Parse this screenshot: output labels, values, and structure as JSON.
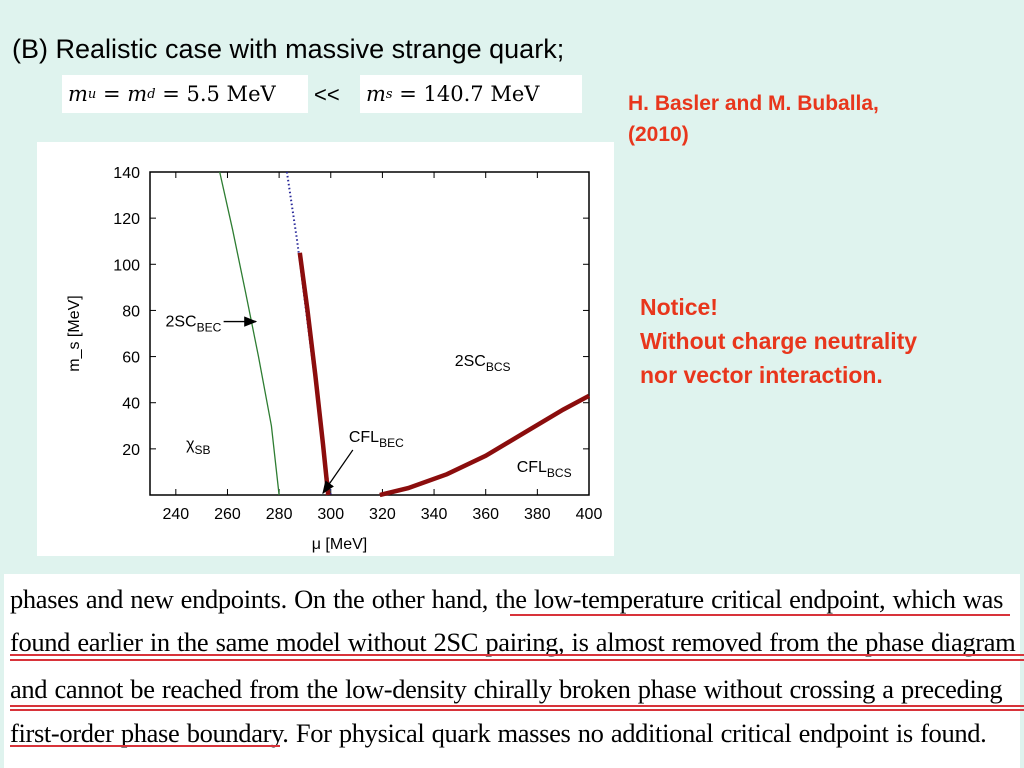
{
  "slide": {
    "title": "(B) Realistic case with massive strange quark;",
    "formula_left": {
      "m1": "m",
      "s1": "u",
      "eq1": "=",
      "m2": "m",
      "s2": "d",
      "val": "= 5.5 MeV"
    },
    "compare": "<<",
    "formula_right": {
      "m": "m",
      "s": "s",
      "val": "= 140.7 MeV"
    },
    "citation": [
      "H. Basler and M. Buballa,",
      "(2010)"
    ],
    "notice": [
      "Notice!",
      "Without charge neutrality",
      "nor vector interaction."
    ]
  },
  "colors": {
    "citation": "#e8361c",
    "chiral_line": "#2e7d32",
    "dotted_line": "#2a2a9a",
    "first_order": "#8b0d0d"
  },
  "chart_data": {
    "type": "line",
    "xlabel": "μ [MeV]",
    "ylabel": "m_s [MeV]",
    "xlim": [
      230,
      400
    ],
    "ylim": [
      0,
      140
    ],
    "x_ticks": [
      "240",
      "260",
      "280",
      "300",
      "320",
      "340",
      "360",
      "380",
      "400"
    ],
    "y_ticks": [
      "20",
      "40",
      "60",
      "80",
      "100",
      "120",
      "140"
    ],
    "grid": false,
    "series": [
      {
        "style": "thin-green",
        "x": [
          257,
          262,
          267,
          272,
          277,
          280
        ],
        "y": [
          140,
          115,
          88,
          60,
          30,
          0
        ]
      },
      {
        "style": "dotted-blue",
        "x": [
          283,
          287,
          291,
          295,
          298,
          300
        ],
        "y": [
          140,
          110,
          75,
          40,
          12,
          0
        ]
      },
      {
        "style": "thick-red",
        "x": [
          288,
          291,
          294,
          297,
          299
        ],
        "y": [
          105,
          80,
          52,
          22,
          0
        ]
      },
      {
        "style": "thick-red",
        "x": [
          319,
          330,
          345,
          360,
          375,
          390,
          400
        ],
        "y": [
          0,
          3,
          9,
          17,
          27,
          37,
          43
        ]
      }
    ],
    "annotations": [
      {
        "text": "2SC",
        "sub": "BEC",
        "x": 236,
        "y": 73,
        "arrow_to": [
          271,
          73
        ]
      },
      {
        "text": "2SC",
        "sub": "BCS",
        "x": 348,
        "y": 56
      },
      {
        "text": "χ",
        "sub": "SB",
        "x": 244,
        "y": 20
      },
      {
        "text": "CFL",
        "sub": "BEC",
        "x": 307,
        "y": 23,
        "arrow_to": [
          297,
          0
        ]
      },
      {
        "text": "CFL",
        "sub": "BCS",
        "x": 372,
        "y": 10
      }
    ]
  },
  "excerpt": {
    "lines": [
      "phases and new endpoints.  On the other hand, the low-temperature critical endpoint, which was",
      "found earlier in the same model without 2SC pairing, is almost removed from the phase diagram",
      "and cannot be reached from the low-density chirally broken phase without crossing a preceding",
      "first-order phase boundary. For physical quark masses no additional critical endpoint is found."
    ]
  }
}
